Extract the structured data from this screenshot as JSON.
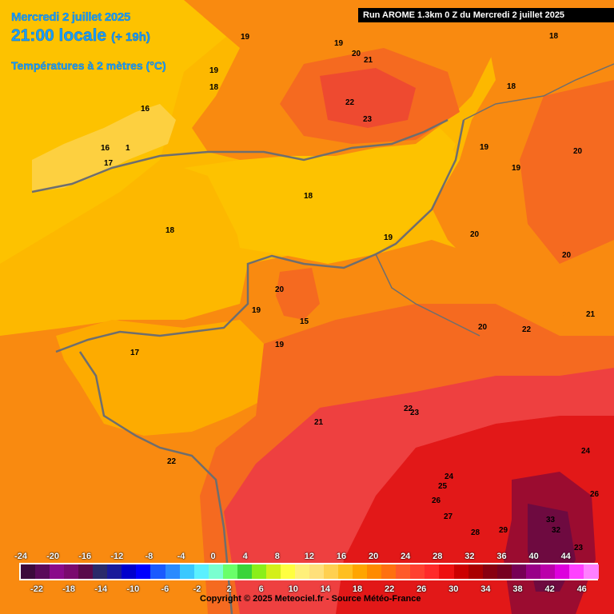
{
  "header": {
    "date": "Mercredi 2 juillet 2025",
    "time": "21:00 locale",
    "offset": "(+ 19h)",
    "parameter": "Températures à 2 mètres (°C)"
  },
  "run_info": "Run AROME 1.3km 0 Z du Mercredi 2 juillet 2025",
  "copyright": "Copyright © 2025 Meteociel.fr - Source Météo-France",
  "colors": {
    "sea": "#fdc200",
    "land_cool": "#fdab00",
    "land_mid": "#f98a10",
    "land_warm": "#f56a20",
    "land_hot": "#ee4040",
    "land_very_hot": "#e21818",
    "land_extreme": "#9b0c30",
    "header_text": "#1aa0ff",
    "coast": "#6e6e6e"
  },
  "legend": {
    "top_labels": [
      "-24",
      "-20",
      "-16",
      "-12",
      "-8",
      "-4",
      "0",
      "4",
      "8",
      "12",
      "16",
      "20",
      "24",
      "28",
      "32",
      "36",
      "40",
      "44"
    ],
    "bottom_labels": [
      "-22",
      "-18",
      "-14",
      "-10",
      "-6",
      "-2",
      "2",
      "6",
      "10",
      "14",
      "18",
      "22",
      "26",
      "30",
      "34",
      "38",
      "42",
      "46"
    ],
    "colors": [
      "#3c0a3c",
      "#5a0a5a",
      "#8a0a8a",
      "#7a0a6e",
      "#5a0a4a",
      "#2a2a6a",
      "#1a1a9a",
      "#0000cc",
      "#0000ff",
      "#1a5aff",
      "#2a8aff",
      "#3ac8ff",
      "#5af0ff",
      "#7affd0",
      "#6aff6a",
      "#3ad43a",
      "#8aef1a",
      "#d4ef1a",
      "#ffff40",
      "#fff07a",
      "#ffe07a",
      "#ffd050",
      "#ffbf20",
      "#ffa500",
      "#ff8a00",
      "#ff7010",
      "#ff5a2a",
      "#ff4030",
      "#ff2a2a",
      "#ee1010",
      "#cc0000",
      "#aa0000",
      "#880010",
      "#770020",
      "#770055",
      "#990088",
      "#bb00aa",
      "#dd00dd",
      "#ff40ff",
      "#ff80ff"
    ]
  },
  "labels": [
    {
      "text": "19"
    },
    {
      "text": "19"
    },
    {
      "text": "20"
    },
    {
      "text": "21"
    },
    {
      "text": "18"
    },
    {
      "text": "19"
    },
    {
      "text": "18"
    },
    {
      "text": "16"
    },
    {
      "text": "16"
    },
    {
      "text": "17"
    },
    {
      "text": "1"
    },
    {
      "text": "22"
    },
    {
      "text": "23"
    },
    {
      "text": "18"
    },
    {
      "text": "19"
    },
    {
      "text": "20"
    },
    {
      "text": "19"
    },
    {
      "text": "18"
    },
    {
      "text": "18"
    },
    {
      "text": "19"
    },
    {
      "text": "20"
    },
    {
      "text": "20"
    },
    {
      "text": "19"
    },
    {
      "text": "15"
    },
    {
      "text": "19"
    },
    {
      "text": "17"
    },
    {
      "text": "20"
    },
    {
      "text": "22"
    },
    {
      "text": "21"
    },
    {
      "text": "20"
    },
    {
      "text": "21"
    },
    {
      "text": "22"
    },
    {
      "text": "23"
    },
    {
      "text": "22"
    },
    {
      "text": "24"
    },
    {
      "text": "25"
    },
    {
      "text": "26"
    },
    {
      "text": "27"
    },
    {
      "text": "28"
    },
    {
      "text": "29"
    },
    {
      "text": "33"
    },
    {
      "text": "32"
    },
    {
      "text": "24"
    },
    {
      "text": "26"
    },
    {
      "text": "23"
    },
    {
      "text": "18"
    },
    {
      "text": "24"
    }
  ]
}
